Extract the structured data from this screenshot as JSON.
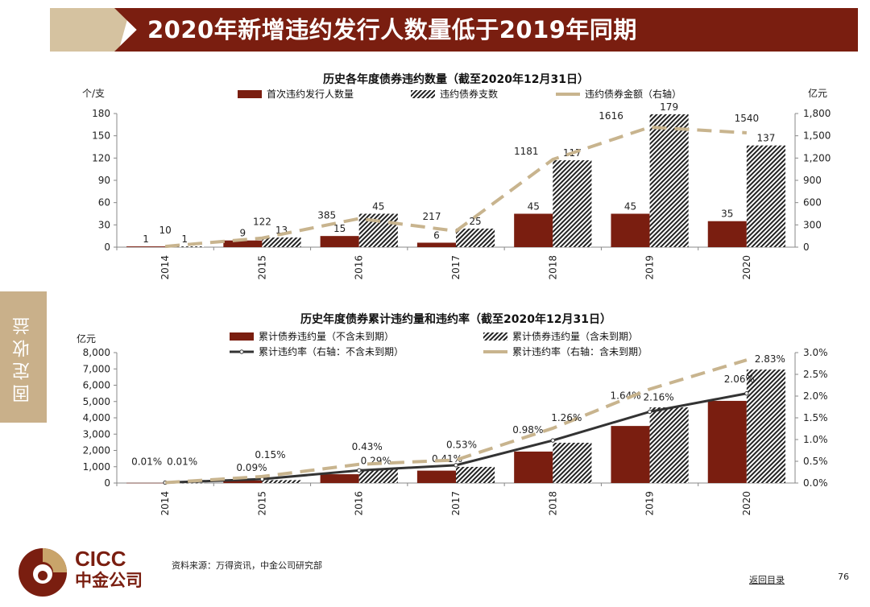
{
  "header": {
    "title": "2020年新增违约发行人数量低于2019年同期"
  },
  "side_tab": {
    "label": "固定收益"
  },
  "footer": {
    "logo_en": "CICC",
    "logo_cn": "中金公司",
    "source": "资料来源：万得资讯，中金公司研究部",
    "back_link": "返回目录",
    "page_number": "76"
  },
  "colors": {
    "brand": "#7a1e10",
    "accent": "#c9b08a",
    "bar_red": "#7a1e10",
    "line_dash": "#c8b48e",
    "line_solid": "#333333"
  },
  "chart_data": [
    {
      "type": "bar",
      "title": "历史各年度债券违约数量（截至2020年12月31日）",
      "ylabel": "个/支",
      "y2label": "亿元",
      "categories": [
        "2014",
        "2015",
        "2016",
        "2017",
        "2018",
        "2019",
        "2020"
      ],
      "ylim": [
        0,
        180
      ],
      "yticks": [
        "0",
        "30",
        "60",
        "90",
        "120",
        "150",
        "180"
      ],
      "y2lim": [
        0,
        1800
      ],
      "y2ticks": [
        "0",
        "300",
        "600",
        "900",
        "1,200",
        "1,500",
        "1,800"
      ],
      "legend": "top",
      "series": [
        {
          "name": "首次违约发行人数量",
          "kind": "bar",
          "style": "solid",
          "axis": "left",
          "values": [
            1,
            9,
            15,
            6,
            45,
            45,
            35
          ],
          "labels": [
            "1",
            "9",
            "15",
            "6",
            "45",
            "45",
            "35"
          ]
        },
        {
          "name": "违约债券支数",
          "kind": "bar",
          "style": "hatched",
          "axis": "left",
          "values": [
            1,
            13,
            45,
            25,
            117,
            179,
            137
          ],
          "labels": [
            "1",
            "13",
            "45",
            "25",
            "117",
            "179",
            "137"
          ]
        },
        {
          "name": "违约债券金额（右轴）",
          "kind": "line",
          "style": "dashed",
          "axis": "right",
          "values": [
            10,
            122,
            385,
            217,
            1181,
            1616,
            1540
          ],
          "labels": [
            "10",
            "122",
            "385",
            "217",
            "1181",
            "1616",
            "1540"
          ]
        }
      ]
    },
    {
      "type": "bar",
      "title": "历史年度债券累计违约量和违约率（截至2020年12月31日）",
      "ylabel": "亿元",
      "categories": [
        "2014",
        "2015",
        "2016",
        "2017",
        "2018",
        "2019",
        "2020"
      ],
      "ylim": [
        0,
        8000
      ],
      "yticks": [
        "0",
        "1,000",
        "2,000",
        "3,000",
        "4,000",
        "5,000",
        "6,000",
        "7,000",
        "8,000"
      ],
      "y2lim": [
        0,
        3.0
      ],
      "y2ticks": [
        "0.0%",
        "0.5%",
        "1.0%",
        "1.5%",
        "2.0%",
        "2.5%",
        "3.0%"
      ],
      "legend": "top",
      "series": [
        {
          "name": "累计债券违约量（不含未到期）",
          "kind": "bar",
          "style": "solid",
          "axis": "left",
          "values": [
            10,
            150,
            540,
            760,
            1930,
            3500,
            5040
          ]
        },
        {
          "name": "累计债券违约量（含未到期）",
          "kind": "bar",
          "style": "hatched",
          "axis": "left",
          "values": [
            10,
            180,
            860,
            990,
            2470,
            4640,
            6960
          ]
        },
        {
          "name": "累计违约率（右轴：不含未到期）",
          "kind": "line",
          "style": "solid",
          "axis": "right",
          "values": [
            0.01,
            0.09,
            0.29,
            0.41,
            0.98,
            1.64,
            2.06
          ],
          "labels": [
            "0.01%",
            "0.09%",
            "0.29%",
            "0.41%",
            "0.98%",
            "1.64%",
            "2.06%"
          ]
        },
        {
          "name": "累计违约率（右轴：含未到期）",
          "kind": "line",
          "style": "dashed",
          "axis": "right",
          "values": [
            0.01,
            0.15,
            0.43,
            0.53,
            1.26,
            2.16,
            2.83
          ],
          "labels": [
            "0.01%",
            "0.15%",
            "0.43%",
            "0.53%",
            "1.26%",
            "2.16%",
            "2.83%"
          ]
        }
      ]
    }
  ]
}
